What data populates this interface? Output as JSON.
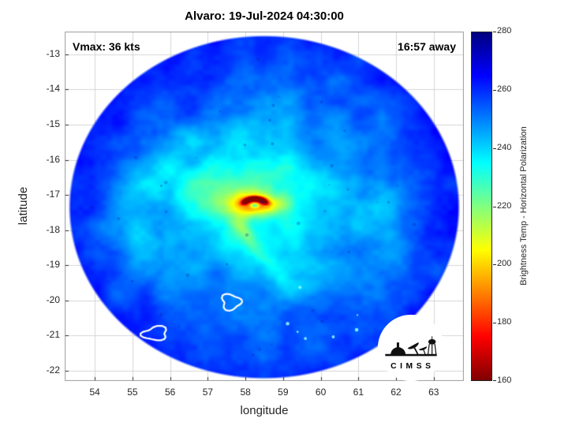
{
  "chart_data": {
    "type": "heatmap",
    "title": "Alvaro: 19-Jul-2024 04:30:00",
    "annotations": {
      "vmax": "Vmax: 36 kts",
      "time_away": "16:57 away"
    },
    "xlabel": "longitude",
    "ylabel": "latitude",
    "x": {
      "ticks": [
        54,
        55,
        56,
        57,
        58,
        59,
        60,
        61,
        62,
        63
      ],
      "lim": [
        53.2,
        63.8
      ]
    },
    "y": {
      "ticks": [
        -13,
        -14,
        -15,
        -16,
        -17,
        -18,
        -19,
        -20,
        -21,
        -22
      ],
      "lim": [
        -22.3,
        -12.35
      ]
    },
    "grid": true,
    "grid_color": "#d6d6d6",
    "colorbar": {
      "label": "Brightness Temp - Horizontal Polarization",
      "ticks": [
        160,
        180,
        200,
        220,
        240,
        260,
        280
      ],
      "lim": [
        160,
        280
      ],
      "stops": [
        {
          "v": 160,
          "color": "#7f0000"
        },
        {
          "v": 175,
          "color": "#ff0000"
        },
        {
          "v": 205,
          "color": "#ffff00"
        },
        {
          "v": 235,
          "color": "#00ffff"
        },
        {
          "v": 265,
          "color": "#0000ff"
        },
        {
          "v": 280,
          "color": "#00007f"
        }
      ]
    },
    "swath": {
      "center_lon": 58.5,
      "center_lat": -17.35,
      "radius_lon": 5.2,
      "radius_lat": 4.9
    },
    "storm_eye": {
      "lon": 58.25,
      "lat": -17.3
    },
    "contours": [
      {
        "lon": 57.62,
        "lat": -20.05,
        "rlon": 0.27,
        "rlat": 0.2,
        "seed": 2
      },
      {
        "lon": 55.6,
        "lat": -20.95,
        "rlon": 0.34,
        "rlat": 0.18,
        "seed": 5
      },
      {
        "lon": 63.45,
        "lat": -19.6,
        "rlon": 0.09,
        "rlat": 0.05,
        "seed": 9
      }
    ],
    "logo_text": "C I M S S"
  }
}
